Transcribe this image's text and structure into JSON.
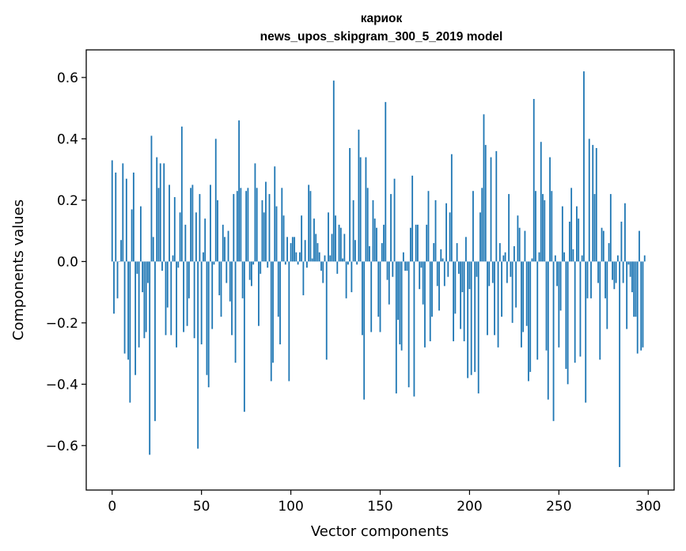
{
  "chart_data": {
    "type": "bar",
    "title_lines": [
      "кариок",
      "news_upos_skipgram_300_5_2019 model"
    ],
    "xlabel": "Vector components",
    "ylabel": "Components values",
    "xlim": [
      -14.5,
      314.5
    ],
    "ylim": [
      -0.745,
      0.69
    ],
    "xticks": [
      0,
      50,
      100,
      150,
      200,
      250,
      300
    ],
    "yticks": [
      -0.6,
      -0.4,
      -0.2,
      0.0,
      0.2,
      0.4,
      0.6
    ],
    "ytick_labels": [
      "−0.6",
      "−0.4",
      "−0.2",
      "0.0",
      "0.2",
      "0.4",
      "0.6"
    ],
    "grid": false,
    "bar_color": "#1f77b4",
    "x": "0..299 (one bar per vector component)",
    "values": [
      0.33,
      -0.17,
      0.29,
      -0.12,
      0.0,
      0.07,
      0.32,
      -0.3,
      0.27,
      -0.32,
      -0.46,
      0.17,
      0.29,
      -0.37,
      -0.04,
      -0.28,
      0.18,
      -0.1,
      -0.25,
      -0.23,
      -0.07,
      -0.63,
      0.41,
      0.08,
      -0.52,
      0.34,
      0.24,
      0.32,
      -0.03,
      0.32,
      -0.24,
      -0.15,
      0.25,
      -0.24,
      0.02,
      0.21,
      -0.28,
      -0.02,
      0.16,
      0.44,
      -0.23,
      0.12,
      -0.21,
      -0.12,
      0.24,
      0.25,
      -0.25,
      0.16,
      -0.61,
      0.22,
      -0.27,
      0.03,
      0.14,
      -0.37,
      -0.41,
      0.25,
      -0.22,
      -0.01,
      0.4,
      0.2,
      -0.11,
      -0.18,
      0.12,
      0.08,
      -0.07,
      0.1,
      -0.13,
      -0.24,
      0.22,
      -0.33,
      0.23,
      0.46,
      0.24,
      -0.12,
      -0.49,
      0.23,
      0.24,
      -0.06,
      -0.08,
      -0.01,
      0.32,
      0.24,
      -0.21,
      -0.04,
      0.2,
      0.16,
      0.26,
      -0.02,
      0.22,
      -0.39,
      -0.33,
      0.31,
      0.18,
      -0.18,
      -0.27,
      0.24,
      0.15,
      -0.01,
      0.08,
      -0.39,
      0.06,
      0.08,
      0.08,
      0.03,
      -0.01,
      0.03,
      0.15,
      -0.11,
      0.07,
      -0.02,
      0.25,
      0.23,
      0.01,
      0.14,
      0.09,
      0.06,
      0.03,
      -0.03,
      -0.07,
      0.02,
      -0.32,
      0.16,
      0.02,
      0.09,
      0.59,
      0.15,
      -0.04,
      0.12,
      0.11,
      0.01,
      0.09,
      -0.12,
      -0.01,
      0.37,
      -0.1,
      0.2,
      0.07,
      -0.01,
      0.43,
      0.34,
      -0.24,
      -0.45,
      0.34,
      0.24,
      0.05,
      -0.23,
      0.2,
      0.14,
      0.11,
      -0.18,
      -0.23,
      0.06,
      0.12,
      0.52,
      -0.06,
      -0.14,
      0.22,
      -0.05,
      0.27,
      -0.43,
      -0.19,
      -0.27,
      -0.29,
      0.03,
      -0.03,
      -0.03,
      -0.41,
      0.11,
      0.28,
      -0.44,
      0.12,
      0.12,
      -0.09,
      -0.02,
      -0.14,
      -0.28,
      0.12,
      0.23,
      -0.26,
      -0.18,
      0.06,
      0.2,
      -0.08,
      -0.16,
      0.04,
      0.01,
      -0.08,
      0.19,
      -0.05,
      0.16,
      0.35,
      -0.26,
      -0.17,
      0.06,
      -0.04,
      -0.22,
      -0.1,
      -0.26,
      0.08,
      -0.38,
      -0.09,
      -0.37,
      0.23,
      -0.36,
      -0.05,
      -0.43,
      0.16,
      0.24,
      0.48,
      0.38,
      -0.24,
      -0.08,
      0.34,
      -0.07,
      -0.24,
      0.36,
      -0.28,
      0.06,
      -0.18,
      0.02,
      0.03,
      -0.07,
      0.22,
      -0.05,
      -0.2,
      0.05,
      -0.15,
      0.15,
      0.11,
      -0.28,
      -0.23,
      0.1,
      -0.21,
      -0.39,
      -0.36,
      0.01,
      0.53,
      0.23,
      -0.32,
      0.03,
      0.39,
      0.22,
      0.2,
      -0.29,
      -0.45,
      0.34,
      0.23,
      -0.52,
      0.02,
      -0.08,
      -0.28,
      -0.16,
      0.18,
      0.03,
      -0.35,
      -0.4,
      0.13,
      0.24,
      0.04,
      -0.33,
      0.18,
      0.14,
      -0.31,
      0.02,
      0.62,
      -0.46,
      -0.12,
      0.4,
      -0.12,
      0.38,
      0.22,
      0.37,
      -0.07,
      -0.32,
      0.11,
      0.1,
      -0.12,
      -0.22,
      0.06,
      0.22,
      -0.06,
      -0.09,
      -0.07,
      0.02,
      -0.67,
      0.13,
      -0.07,
      0.19,
      -0.22,
      -0.01,
      -0.05,
      -0.1,
      -0.18,
      -0.18,
      -0.3,
      0.1,
      -0.29,
      -0.28,
      0.02
    ]
  }
}
